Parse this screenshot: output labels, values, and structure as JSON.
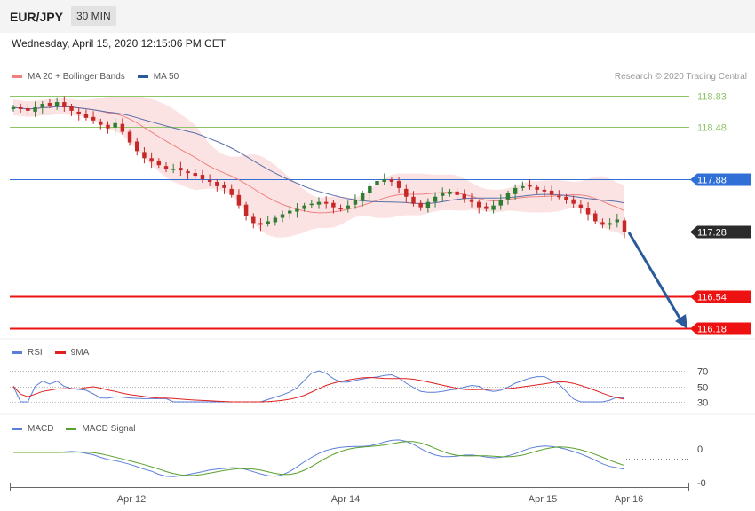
{
  "header": {
    "symbol": "EUR/JPY",
    "timeframe": "30 MIN",
    "datetime": "Wednesday, April 15, 2020 12:15:06 PM CET",
    "credit": "Research © 2020 Trading Central"
  },
  "legends": {
    "main": [
      {
        "label": "MA 20 + Bollinger Bands",
        "color": "#f08080"
      },
      {
        "label": "MA 50",
        "color": "#2b5a9a"
      }
    ],
    "rsi": [
      {
        "label": "RSI",
        "color": "#5b7fd8"
      },
      {
        "label": "9MA",
        "color": "#e02020"
      }
    ],
    "macd": [
      {
        "label": "MACD",
        "color": "#5b7fd8"
      },
      {
        "label": "MACD Signal",
        "color": "#5aa02c"
      }
    ]
  },
  "colors": {
    "up_candle": "#2e7d32",
    "down_candle": "#c62828",
    "bollinger_fill": "#fcdede",
    "ma20": "#f08080",
    "ma50": "#5a6fa8",
    "resistance_green": "#8cc466",
    "pivot_blue": "#2f6fd6",
    "support_red": "#ee1111",
    "arrow": "#2b5a9a"
  },
  "chart_data": {
    "type": "line",
    "title": "",
    "xlabel": "",
    "ylabel": "",
    "ylim": [
      116.1,
      118.9
    ],
    "x_ticks": [
      "Apr 12",
      "Apr 14",
      "Apr 15",
      "Apr 16"
    ],
    "levels": [
      {
        "value": "118.83",
        "kind": "resistance"
      },
      {
        "value": "118.48",
        "kind": "resistance"
      },
      {
        "value": "117.88",
        "kind": "pivot"
      },
      {
        "value": "117.28",
        "kind": "last"
      },
      {
        "value": "116.54",
        "kind": "support"
      },
      {
        "value": "116.18",
        "kind": "support"
      }
    ],
    "close_series": [
      118.7,
      118.68,
      118.66,
      118.7,
      118.74,
      118.72,
      118.76,
      118.7,
      118.66,
      118.62,
      118.58,
      118.55,
      118.5,
      118.46,
      118.52,
      118.42,
      118.3,
      118.2,
      118.12,
      118.08,
      118.04,
      118.0,
      118.0,
      117.98,
      117.95,
      117.92,
      117.88,
      117.85,
      117.8,
      117.78,
      117.7,
      117.58,
      117.46,
      117.38,
      117.36,
      117.4,
      117.44,
      117.48,
      117.52,
      117.54,
      117.58,
      117.6,
      117.62,
      117.6,
      117.56,
      117.54,
      117.58,
      117.64,
      117.72,
      117.8,
      117.86,
      117.88,
      117.85,
      117.78,
      117.68,
      117.6,
      117.56,
      117.62,
      117.68,
      117.72,
      117.74,
      117.7,
      117.66,
      117.62,
      117.56,
      117.54,
      117.58,
      117.64,
      117.72,
      117.78,
      117.8,
      117.8,
      117.76,
      117.74,
      117.7,
      117.68,
      117.64,
      117.6,
      117.55,
      117.48,
      117.4,
      117.36,
      117.38,
      117.42,
      117.28
    ],
    "rsi": {
      "levels": [
        "70",
        "50",
        "30"
      ]
    },
    "macd": {
      "levels": [
        "0",
        "-0"
      ]
    }
  }
}
